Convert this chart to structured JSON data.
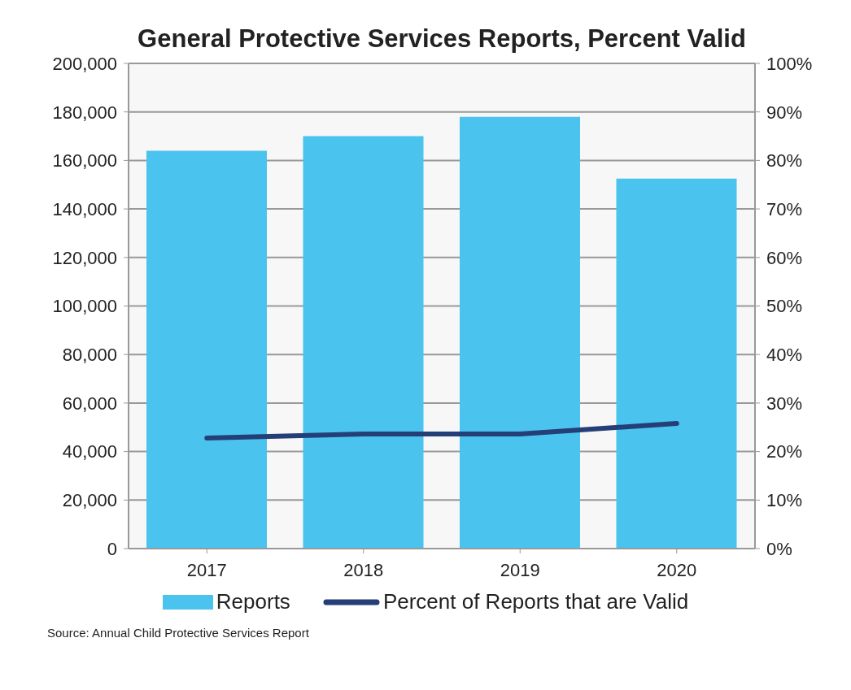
{
  "chart_data": {
    "type": "bar",
    "title": "General Protective Services Reports, Percent Valid",
    "categories": [
      "2017",
      "2018",
      "2019",
      "2020"
    ],
    "series": [
      {
        "name": "Reports",
        "color": "#4bc3ef",
        "values": [
          164000,
          170000,
          178000,
          152500
        ]
      },
      {
        "name": "Percent of Reports that are Valid",
        "type": "line",
        "axis": "y2",
        "color": "#243f77",
        "values": [
          22.8,
          23.6,
          23.6,
          25.8
        ]
      }
    ],
    "ylim": [
      0,
      200000
    ],
    "yticks": [
      0,
      {
        "value": 20000,
        "label": "20,000"
      },
      {
        "value": 40000,
        "label": "40,000"
      },
      {
        "value": 60000,
        "label": "60,000"
      },
      {
        "value": 80000,
        "label": "80,000"
      },
      {
        "value": 100000,
        "label": "100,000"
      },
      {
        "value": 120000,
        "label": "120,000"
      },
      {
        "value": 140000,
        "label": "140,000"
      },
      {
        "value": 160000,
        "label": "160,000"
      },
      {
        "value": 180000,
        "label": "180,000"
      },
      {
        "value": 200000,
        "label": "200,000"
      }
    ],
    "y2lim": [
      0,
      100
    ],
    "y2ticks": [
      {
        "value": 0,
        "label": "0%"
      },
      {
        "value": 10,
        "label": "10%"
      },
      {
        "value": 20,
        "label": "20%"
      },
      {
        "value": 30,
        "label": "30%"
      },
      {
        "value": 40,
        "label": "40%"
      },
      {
        "value": 50,
        "label": "50%"
      },
      {
        "value": 60,
        "label": "60%"
      },
      {
        "value": 70,
        "label": "70%"
      },
      {
        "value": 80,
        "label": "80%"
      },
      {
        "value": 90,
        "label": "90%"
      },
      {
        "value": 100,
        "label": "100%"
      }
    ],
    "grid": "y",
    "legend": "bottom",
    "marker": "none",
    "annotations": [
      "Source: Annual Child Protective Services Report"
    ]
  }
}
